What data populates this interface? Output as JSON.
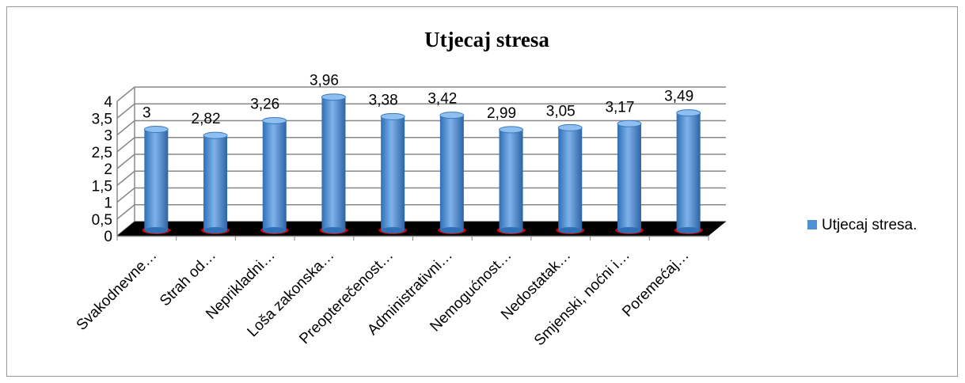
{
  "chart_data": {
    "type": "bar",
    "title": "Utjecaj stresa",
    "categories": [
      "Svakodnevne…",
      "Strah od…",
      "Neprikladni…",
      "Loša zakonska…",
      "Preopterečenost…",
      "Administrativni…",
      "Nemogućnost…",
      "Nedostatak…",
      "Smjenski, noćni i…",
      "Poremećaj…"
    ],
    "series": [
      {
        "name": "Utjecaj stresa.",
        "color": "#4f8fd4",
        "values": [
          3,
          2.82,
          3.26,
          3.96,
          3.38,
          3.42,
          2.99,
          3.05,
          3.17,
          3.49
        ],
        "value_labels": [
          "3",
          "2,82",
          "3,26",
          "3,96",
          "3,38",
          "3,42",
          "2,99",
          "3,05",
          "3,17",
          "3,49"
        ]
      }
    ],
    "ylim": [
      0,
      4
    ],
    "yticks": [
      0,
      {
        "value": 0.5,
        "label": "0,5"
      },
      1,
      {
        "value": 1.5,
        "label": "1,5"
      },
      2,
      {
        "value": 2.5,
        "label": "2,5"
      },
      3,
      {
        "value": 3.5,
        "label": "3,5"
      },
      4
    ],
    "grid": true,
    "legend": "right"
  }
}
